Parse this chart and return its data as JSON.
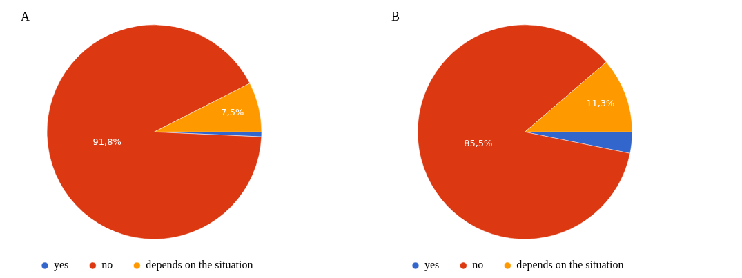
{
  "chart_data": [
    {
      "type": "pie",
      "title": "A",
      "categories": [
        "yes",
        "no",
        "depends on the situation"
      ],
      "values": [
        0.7,
        91.8,
        7.5
      ],
      "colors": [
        "#3366cc",
        "#dc3912",
        "#ff9900"
      ],
      "value_labels": [
        null,
        "91,8%",
        "7,5%"
      ],
      "legend": "bottom left"
    },
    {
      "type": "pie",
      "title": "B",
      "categories": [
        "yes",
        "no",
        "depends on the situation"
      ],
      "values": [
        3.2,
        85.5,
        11.3
      ],
      "colors": [
        "#3366cc",
        "#dc3912",
        "#ff9900"
      ],
      "value_labels": [
        null,
        "85,5%",
        "11,3%"
      ],
      "legend": "bottom left"
    }
  ]
}
